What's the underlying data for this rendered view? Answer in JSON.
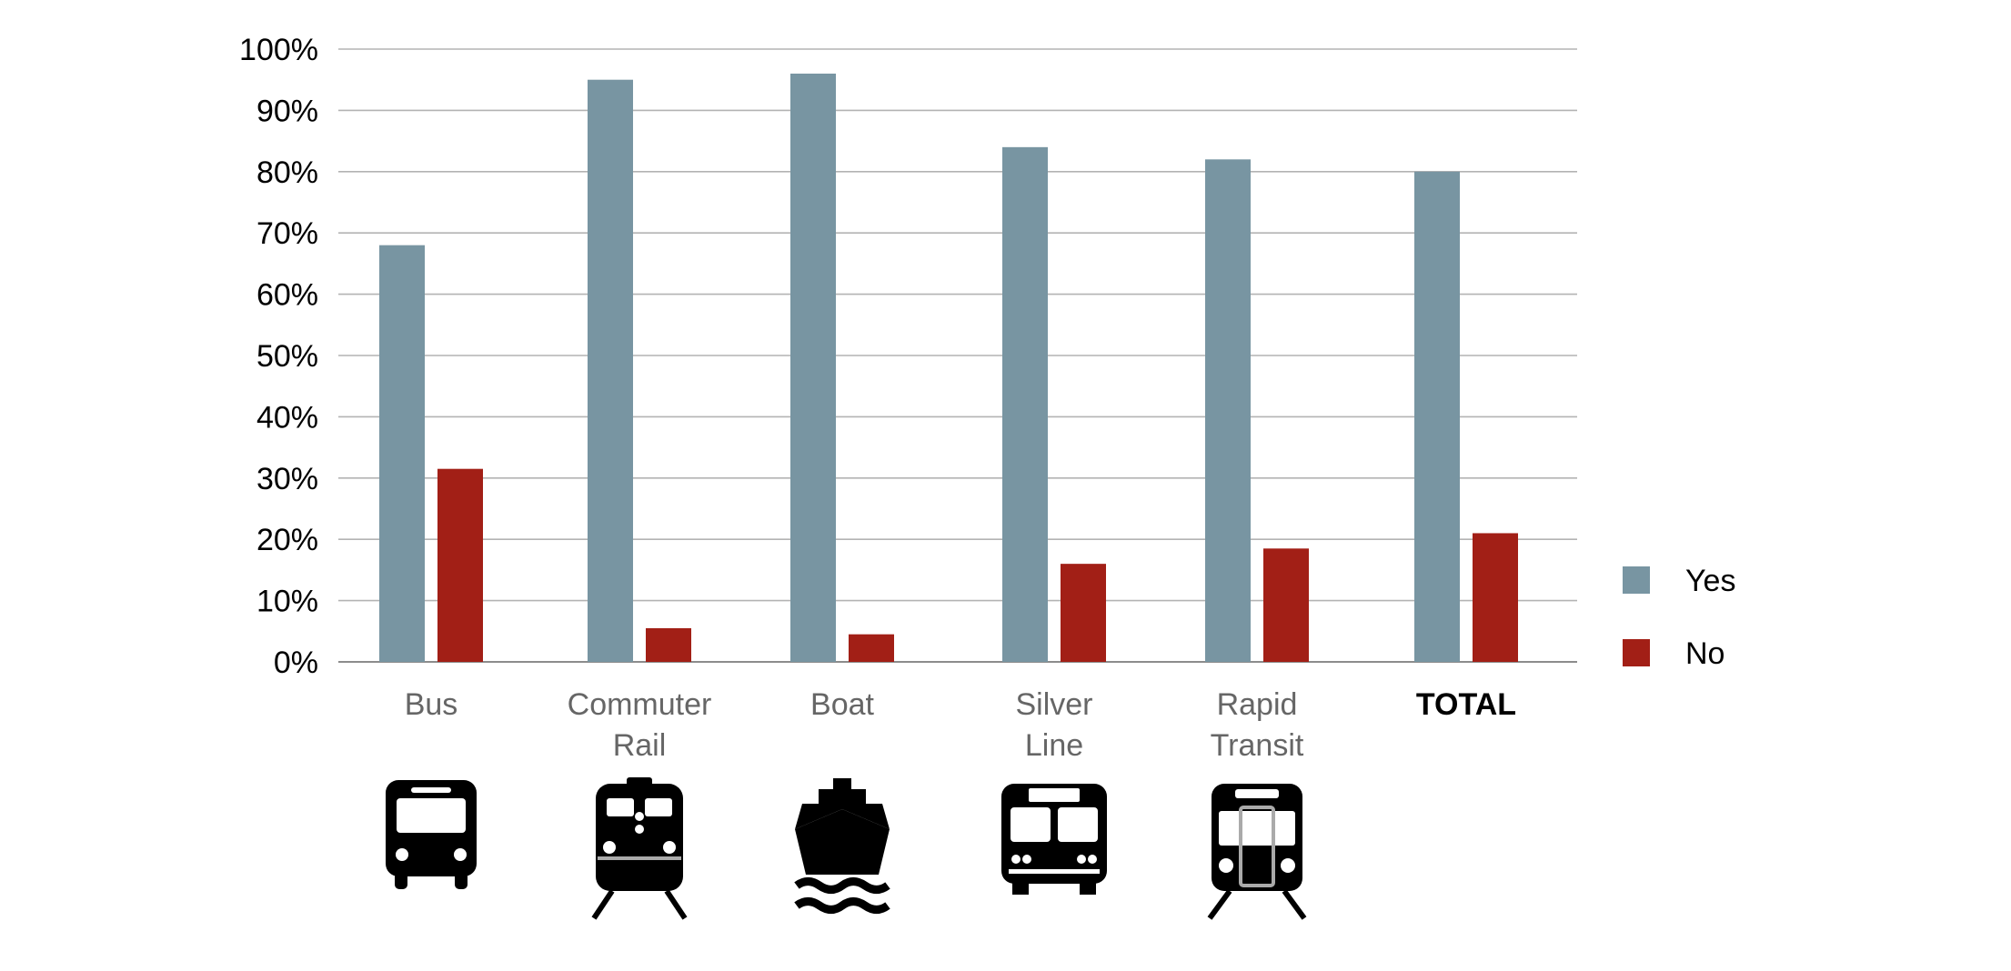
{
  "chart_data": {
    "type": "bar",
    "categories": [
      {
        "lines": [
          "Bus"
        ],
        "bold": false,
        "icon": "bus-icon"
      },
      {
        "lines": [
          "Commuter",
          "Rail"
        ],
        "bold": false,
        "icon": "commuter-rail-icon"
      },
      {
        "lines": [
          "Boat"
        ],
        "bold": false,
        "icon": "boat-icon"
      },
      {
        "lines": [
          "Silver",
          "Line"
        ],
        "bold": false,
        "icon": "silver-line-bus-icon"
      },
      {
        "lines": [
          "Rapid",
          "Transit"
        ],
        "bold": false,
        "icon": "rapid-transit-icon"
      },
      {
        "lines": [
          "TOTAL"
        ],
        "bold": true,
        "icon": ""
      }
    ],
    "series": [
      {
        "name": "Yes",
        "color": "#7895A2",
        "values": [
          68,
          95,
          96,
          84,
          82,
          80
        ]
      },
      {
        "name": "No",
        "color": "#A21F16",
        "values": [
          31.5,
          5.5,
          4.5,
          16,
          18.5,
          21
        ]
      }
    ],
    "yticks": [
      "0%",
      "10%",
      "20%",
      "30%",
      "40%",
      "50%",
      "60%",
      "70%",
      "80%",
      "90%",
      "100%"
    ],
    "ylim": [
      0,
      100
    ],
    "grid": true,
    "legend_position": "right",
    "title": "",
    "xlabel": "",
    "ylabel": ""
  }
}
